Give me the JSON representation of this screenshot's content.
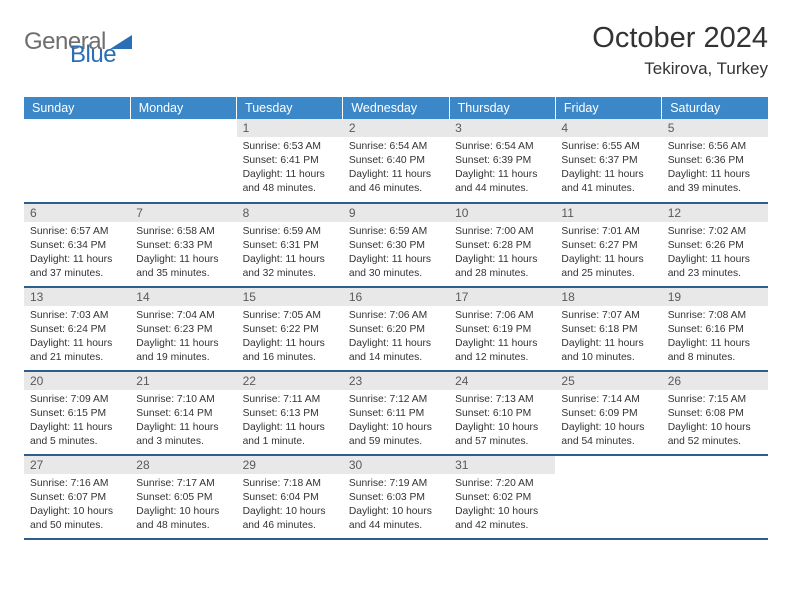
{
  "logo": {
    "gray": "General",
    "blue": "Blue"
  },
  "title": "October 2024",
  "location": "Tekirova, Turkey",
  "colors": {
    "header_bg": "#3b87c8",
    "header_text": "#ffffff",
    "row_border": "#2d5f8e",
    "daynum_bg": "#e8e8e8",
    "logo_gray": "#6e6e6e",
    "logo_blue": "#2a6fb5"
  },
  "weekdays": [
    "Sunday",
    "Monday",
    "Tuesday",
    "Wednesday",
    "Thursday",
    "Friday",
    "Saturday"
  ],
  "weeks": [
    [
      null,
      null,
      {
        "n": "1",
        "sr": "6:53 AM",
        "ss": "6:41 PM",
        "dl": "11 hours and 48 minutes."
      },
      {
        "n": "2",
        "sr": "6:54 AM",
        "ss": "6:40 PM",
        "dl": "11 hours and 46 minutes."
      },
      {
        "n": "3",
        "sr": "6:54 AM",
        "ss": "6:39 PM",
        "dl": "11 hours and 44 minutes."
      },
      {
        "n": "4",
        "sr": "6:55 AM",
        "ss": "6:37 PM",
        "dl": "11 hours and 41 minutes."
      },
      {
        "n": "5",
        "sr": "6:56 AM",
        "ss": "6:36 PM",
        "dl": "11 hours and 39 minutes."
      }
    ],
    [
      {
        "n": "6",
        "sr": "6:57 AM",
        "ss": "6:34 PM",
        "dl": "11 hours and 37 minutes."
      },
      {
        "n": "7",
        "sr": "6:58 AM",
        "ss": "6:33 PM",
        "dl": "11 hours and 35 minutes."
      },
      {
        "n": "8",
        "sr": "6:59 AM",
        "ss": "6:31 PM",
        "dl": "11 hours and 32 minutes."
      },
      {
        "n": "9",
        "sr": "6:59 AM",
        "ss": "6:30 PM",
        "dl": "11 hours and 30 minutes."
      },
      {
        "n": "10",
        "sr": "7:00 AM",
        "ss": "6:28 PM",
        "dl": "11 hours and 28 minutes."
      },
      {
        "n": "11",
        "sr": "7:01 AM",
        "ss": "6:27 PM",
        "dl": "11 hours and 25 minutes."
      },
      {
        "n": "12",
        "sr": "7:02 AM",
        "ss": "6:26 PM",
        "dl": "11 hours and 23 minutes."
      }
    ],
    [
      {
        "n": "13",
        "sr": "7:03 AM",
        "ss": "6:24 PM",
        "dl": "11 hours and 21 minutes."
      },
      {
        "n": "14",
        "sr": "7:04 AM",
        "ss": "6:23 PM",
        "dl": "11 hours and 19 minutes."
      },
      {
        "n": "15",
        "sr": "7:05 AM",
        "ss": "6:22 PM",
        "dl": "11 hours and 16 minutes."
      },
      {
        "n": "16",
        "sr": "7:06 AM",
        "ss": "6:20 PM",
        "dl": "11 hours and 14 minutes."
      },
      {
        "n": "17",
        "sr": "7:06 AM",
        "ss": "6:19 PM",
        "dl": "11 hours and 12 minutes."
      },
      {
        "n": "18",
        "sr": "7:07 AM",
        "ss": "6:18 PM",
        "dl": "11 hours and 10 minutes."
      },
      {
        "n": "19",
        "sr": "7:08 AM",
        "ss": "6:16 PM",
        "dl": "11 hours and 8 minutes."
      }
    ],
    [
      {
        "n": "20",
        "sr": "7:09 AM",
        "ss": "6:15 PM",
        "dl": "11 hours and 5 minutes."
      },
      {
        "n": "21",
        "sr": "7:10 AM",
        "ss": "6:14 PM",
        "dl": "11 hours and 3 minutes."
      },
      {
        "n": "22",
        "sr": "7:11 AM",
        "ss": "6:13 PM",
        "dl": "11 hours and 1 minute."
      },
      {
        "n": "23",
        "sr": "7:12 AM",
        "ss": "6:11 PM",
        "dl": "10 hours and 59 minutes."
      },
      {
        "n": "24",
        "sr": "7:13 AM",
        "ss": "6:10 PM",
        "dl": "10 hours and 57 minutes."
      },
      {
        "n": "25",
        "sr": "7:14 AM",
        "ss": "6:09 PM",
        "dl": "10 hours and 54 minutes."
      },
      {
        "n": "26",
        "sr": "7:15 AM",
        "ss": "6:08 PM",
        "dl": "10 hours and 52 minutes."
      }
    ],
    [
      {
        "n": "27",
        "sr": "7:16 AM",
        "ss": "6:07 PM",
        "dl": "10 hours and 50 minutes."
      },
      {
        "n": "28",
        "sr": "7:17 AM",
        "ss": "6:05 PM",
        "dl": "10 hours and 48 minutes."
      },
      {
        "n": "29",
        "sr": "7:18 AM",
        "ss": "6:04 PM",
        "dl": "10 hours and 46 minutes."
      },
      {
        "n": "30",
        "sr": "7:19 AM",
        "ss": "6:03 PM",
        "dl": "10 hours and 44 minutes."
      },
      {
        "n": "31",
        "sr": "7:20 AM",
        "ss": "6:02 PM",
        "dl": "10 hours and 42 minutes."
      },
      null,
      null
    ]
  ],
  "labels": {
    "sunrise": "Sunrise:",
    "sunset": "Sunset:",
    "daylight": "Daylight:"
  }
}
